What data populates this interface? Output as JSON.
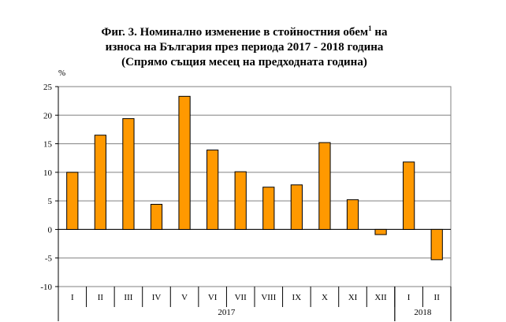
{
  "chart_data": {
    "type": "bar",
    "title_lines": [
      "Фиг. 3. Номинално изменение в стойностния обем",
      "износа на България през периода 2017 - 2018 година",
      "(Спрямо същия месец на предходната година)"
    ],
    "title_sup": "1",
    "title_line1_tail": " на",
    "ylabel": "%",
    "ylim": [
      -10,
      25
    ],
    "yticks": [
      -10,
      -5,
      0,
      5,
      10,
      15,
      20,
      25
    ],
    "grid": true,
    "categories": [
      "I",
      "II",
      "III",
      "IV",
      "V",
      "VI",
      "VII",
      "VIII",
      "IX",
      "X",
      "XI",
      "XII",
      "I",
      "II"
    ],
    "groups": [
      {
        "label": "2017",
        "count": 12
      },
      {
        "label": "2018",
        "count": 2
      }
    ],
    "values": [
      10.0,
      16.5,
      19.4,
      4.4,
      23.3,
      13.9,
      10.1,
      7.4,
      7.8,
      15.2,
      5.2,
      -0.9,
      11.8,
      -5.3
    ],
    "colors": {
      "bar": "#FF9900",
      "bar_stroke": "#000000",
      "grid": "#808080"
    }
  }
}
